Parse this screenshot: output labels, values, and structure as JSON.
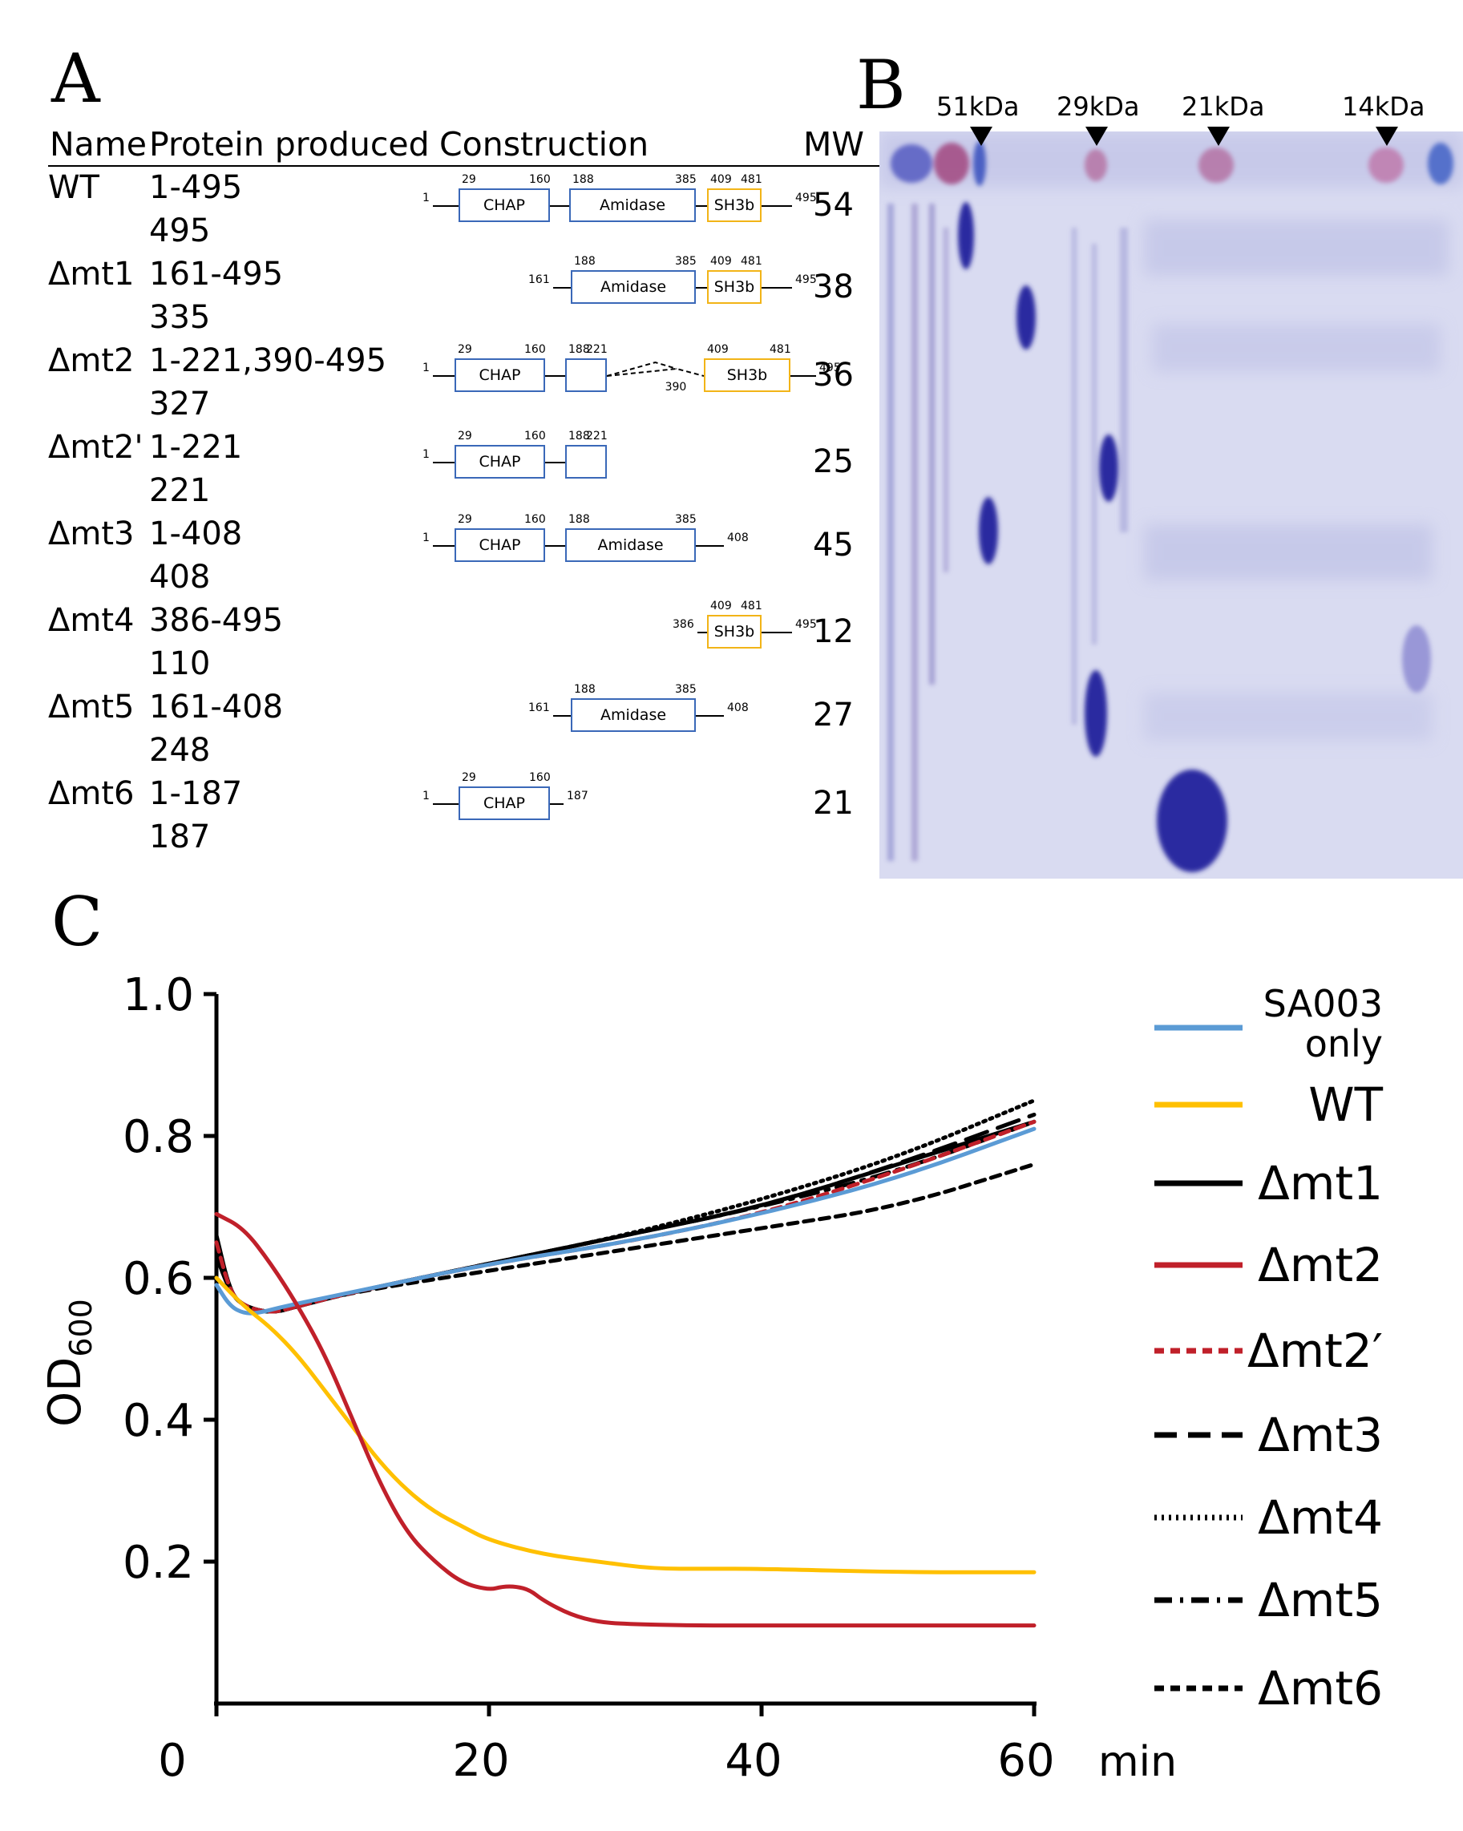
{
  "panelA": {
    "letter": "A",
    "headers": {
      "name": "Name",
      "protein": "Protein produced",
      "construction": "Construction",
      "mw": "MW"
    },
    "rows": [
      {
        "name": "WT",
        "range": "1-495",
        "length": "495",
        "mw": "54",
        "diagram": {
          "start": "1",
          "end": "495",
          "domains": [
            {
              "type": "CHAP",
              "a": "29",
              "b": "160"
            },
            {
              "type": "Amidase",
              "a": "188",
              "b": "385"
            },
            {
              "type": "SH3b",
              "a": "409",
              "b": "481"
            }
          ]
        }
      },
      {
        "name": "Δmt1",
        "range": "161-495",
        "length": "335",
        "mw": "38",
        "diagram": {
          "start": "161",
          "end": "495",
          "domains": [
            {
              "type": "Amidase",
              "a": "188",
              "b": "385"
            },
            {
              "type": "SH3b",
              "a": "409",
              "b": "481"
            }
          ]
        }
      },
      {
        "name": "Δmt2",
        "range": "1-221,390-495",
        "length": "327",
        "mw": "36",
        "diagram": {
          "start": "1",
          "end": "495",
          "gap": "390",
          "domains": [
            {
              "type": "CHAP",
              "a": "29",
              "b": "160"
            },
            {
              "type": "",
              "a": "188",
              "b": "221"
            },
            {
              "type": "SH3b",
              "a": "409",
              "b": "481"
            }
          ]
        }
      },
      {
        "name": "Δmt2'",
        "range": "1-221",
        "length": "221",
        "mw": "25",
        "diagram": {
          "start": "1",
          "domains": [
            {
              "type": "CHAP",
              "a": "29",
              "b": "160"
            },
            {
              "type": "",
              "a": "188",
              "b": "221"
            }
          ]
        }
      },
      {
        "name": "Δmt3",
        "range": "1-408",
        "length": "408",
        "mw": "45",
        "diagram": {
          "start": "1",
          "end": "408",
          "domains": [
            {
              "type": "CHAP",
              "a": "29",
              "b": "160"
            },
            {
              "type": "Amidase",
              "a": "188",
              "b": "385"
            }
          ]
        }
      },
      {
        "name": "Δmt4",
        "range": "386-495",
        "length": "110",
        "mw": "12",
        "diagram": {
          "start": "386",
          "end": "495",
          "domains": [
            {
              "type": "SH3b",
              "a": "409",
              "b": "481"
            }
          ]
        }
      },
      {
        "name": "Δmt5",
        "range": "161-408",
        "length": "248",
        "mw": "27",
        "diagram": {
          "start": "161",
          "end": "408",
          "domains": [
            {
              "type": "Amidase",
              "a": "188",
              "b": "385"
            }
          ]
        }
      },
      {
        "name": "Δmt6",
        "range": "1-187",
        "length": "187",
        "mw": "21",
        "diagram": {
          "start": "1",
          "end": "187",
          "domains": [
            {
              "type": "CHAP",
              "a": "29",
              "b": "160"
            }
          ]
        }
      }
    ],
    "colors": {
      "domain_blue": "#3a68b8",
      "sh3b_yellow": "#f2b417"
    }
  },
  "panelB": {
    "letter": "B",
    "markers": [
      "51kDa",
      "29kDa",
      "21kDa",
      "14kDa"
    ],
    "gel_color": "#d9dbf1",
    "band_color": "#2c2aa0"
  },
  "panelC": {
    "letter": "C",
    "chart_data": {
      "type": "line",
      "xlabel": "min",
      "ylabel": "OD600",
      "ylabel_main": "OD",
      "ylabel_sub": "600",
      "xlim": [
        0,
        60
      ],
      "ylim": [
        0,
        1.0
      ],
      "xticks": [
        "0",
        "20",
        "40",
        "60"
      ],
      "xtick_values": [
        0,
        20,
        40,
        60
      ],
      "yticks": [
        "0.2",
        "0.4",
        "0.6",
        "0.8",
        "1.0"
      ],
      "ytick_values": [
        0.2,
        0.4,
        0.6,
        0.8,
        1.0
      ],
      "series": [
        {
          "name": "SA003 only",
          "color": "#5b9bd5",
          "dash": "solid",
          "x": [
            0,
            1,
            2,
            3,
            5,
            10,
            20,
            30,
            40,
            50,
            60
          ],
          "y": [
            0.59,
            0.56,
            0.55,
            0.55,
            0.56,
            0.58,
            0.62,
            0.65,
            0.69,
            0.74,
            0.81
          ]
        },
        {
          "name": "WT",
          "color": "#ffc000",
          "dash": "solid",
          "x": [
            0,
            2,
            4,
            6,
            8,
            10,
            12,
            14,
            16,
            18,
            20,
            24,
            28,
            32,
            36,
            40,
            50,
            60
          ],
          "y": [
            0.6,
            0.56,
            0.53,
            0.49,
            0.44,
            0.39,
            0.34,
            0.3,
            0.27,
            0.25,
            0.23,
            0.21,
            0.2,
            0.19,
            0.19,
            0.19,
            0.185,
            0.185
          ]
        },
        {
          "name": "Δmt1",
          "color": "#000000",
          "dash": "solid",
          "x": [
            0,
            1,
            2,
            4,
            6,
            10,
            20,
            30,
            40,
            50,
            60
          ],
          "y": [
            0.66,
            0.58,
            0.56,
            0.55,
            0.56,
            0.58,
            0.62,
            0.66,
            0.7,
            0.76,
            0.82
          ]
        },
        {
          "name": "Δmt2",
          "color": "#c0202a",
          "dash": "solid",
          "x": [
            0,
            2,
            4,
            6,
            8,
            10,
            12,
            14,
            16,
            18,
            20,
            21,
            22,
            23,
            24,
            26,
            28,
            30,
            35,
            40,
            50,
            60
          ],
          "y": [
            0.69,
            0.67,
            0.62,
            0.56,
            0.49,
            0.4,
            0.31,
            0.24,
            0.2,
            0.17,
            0.16,
            0.165,
            0.165,
            0.16,
            0.145,
            0.125,
            0.115,
            0.112,
            0.11,
            0.11,
            0.11,
            0.11
          ]
        },
        {
          "name": "Δmt2′",
          "color": "#c0202a",
          "dash": "12,8",
          "x": [
            0,
            1,
            2,
            4,
            6,
            10,
            20,
            30,
            40,
            50,
            60
          ],
          "y": [
            0.65,
            0.58,
            0.56,
            0.55,
            0.56,
            0.58,
            0.62,
            0.65,
            0.69,
            0.75,
            0.82
          ]
        },
        {
          "name": "Δmt3",
          "color": "#000000",
          "dash": "28,14",
          "x": [
            0,
            1,
            2,
            4,
            6,
            10,
            20,
            30,
            40,
            50,
            60
          ],
          "y": [
            0.64,
            0.58,
            0.56,
            0.55,
            0.56,
            0.58,
            0.62,
            0.66,
            0.7,
            0.76,
            0.83
          ]
        },
        {
          "name": "Δmt4",
          "color": "#000000",
          "dash": "3,6",
          "x": [
            0,
            1,
            2,
            4,
            6,
            10,
            20,
            30,
            40,
            50,
            60
          ],
          "y": [
            0.64,
            0.58,
            0.56,
            0.55,
            0.56,
            0.58,
            0.62,
            0.66,
            0.71,
            0.77,
            0.85
          ]
        },
        {
          "name": "Δmt5",
          "color": "#000000",
          "dash": "22,10,4,10",
          "x": [
            0,
            1,
            2,
            4,
            6,
            10,
            20,
            30,
            40,
            50,
            60
          ],
          "y": [
            0.63,
            0.58,
            0.56,
            0.55,
            0.56,
            0.58,
            0.62,
            0.66,
            0.7,
            0.75,
            0.82
          ]
        },
        {
          "name": "Δmt6",
          "color": "#000000",
          "dash": "12,8",
          "x": [
            0,
            1,
            2,
            4,
            6,
            10,
            20,
            30,
            40,
            50,
            60
          ],
          "y": [
            0.63,
            0.58,
            0.56,
            0.55,
            0.56,
            0.58,
            0.61,
            0.64,
            0.67,
            0.7,
            0.76
          ]
        }
      ],
      "legend": [
        {
          "label_lines": [
            "SA003",
            "only"
          ],
          "series": "SA003 only"
        },
        {
          "label_lines": [
            "WT"
          ],
          "series": "WT"
        },
        {
          "label_lines": [
            "Δmt1"
          ],
          "series": "Δmt1"
        },
        {
          "label_lines": [
            "Δmt2"
          ],
          "series": "Δmt2"
        },
        {
          "label_lines": [
            "Δmt2′"
          ],
          "series": "Δmt2′"
        },
        {
          "label_lines": [
            "Δmt3"
          ],
          "series": "Δmt3"
        },
        {
          "label_lines": [
            "Δmt4"
          ],
          "series": "Δmt4"
        },
        {
          "label_lines": [
            "Δmt5"
          ],
          "series": "Δmt5"
        },
        {
          "label_lines": [
            "Δmt6"
          ],
          "series": "Δmt6"
        }
      ],
      "legend_position": "right"
    }
  }
}
